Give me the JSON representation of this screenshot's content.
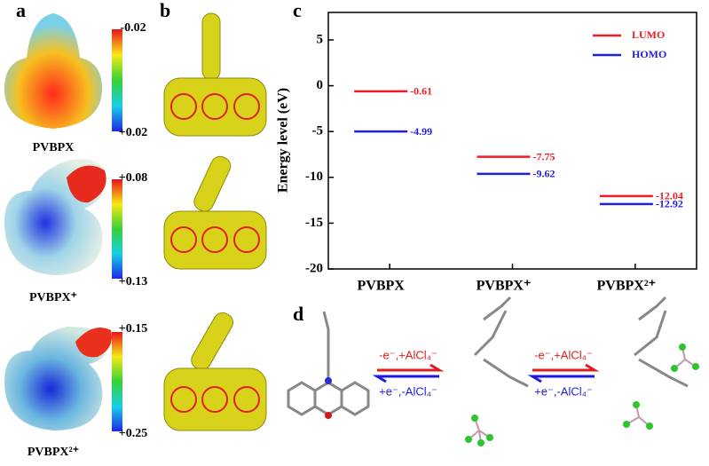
{
  "chart_data": {
    "type": "level",
    "ylabel": "Energy level (eV)",
    "categories": [
      "PVBPX",
      "PVBPX⁺",
      "PVBPX²⁺"
    ],
    "series": [
      {
        "name": "LUMO",
        "color": "#ee1c25",
        "values": [
          -0.61,
          -7.75,
          -12.04
        ]
      },
      {
        "name": "HOMO",
        "color": "#1f1fe0",
        "values": [
          -4.99,
          -9.62,
          -12.92
        ]
      }
    ],
    "ylim": [
      -20,
      8
    ],
    "yticks": [
      5,
      0,
      -5,
      -10,
      -15,
      -20
    ],
    "legend": "upper right"
  },
  "panels": {
    "labels": [
      "a",
      "b",
      "c",
      "d"
    ],
    "a": {
      "colorbars": [
        {
          "top": "-0.02",
          "bottom": "+0.02",
          "name": "PVBPX"
        },
        {
          "top": "+0.08",
          "bottom": "+0.13",
          "name": "PVBPX⁺"
        },
        {
          "top": "+0.15",
          "bottom": "+0.25",
          "name": "PVBPX²⁺"
        }
      ]
    },
    "d": {
      "forward": "-e⁻,+AlCl₄⁻",
      "backward": "+e⁻,-AlCl₄⁻"
    }
  }
}
